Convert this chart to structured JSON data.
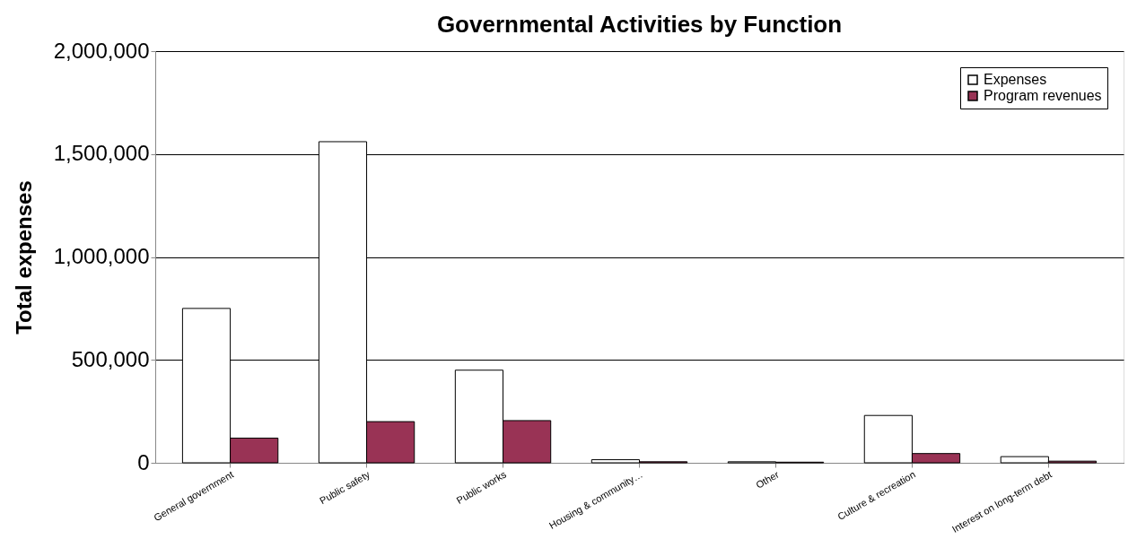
{
  "chart_data": {
    "type": "bar",
    "title": "Governmental Activities by Function",
    "ylabel": "Total expenses",
    "categories": [
      "General government",
      "Public safety",
      "Public works",
      "Housing & community…",
      "Other",
      "Culture & recreation",
      "Interest on long-term debt"
    ],
    "series": [
      {
        "name": "Expenses",
        "color": "#ffffff",
        "values": [
          750000,
          1560000,
          450000,
          15000,
          5000,
          230000,
          30000
        ]
      },
      {
        "name": "Program revenues",
        "color": "#993355",
        "values": [
          120000,
          200000,
          205000,
          5000,
          3000,
          45000,
          8000
        ]
      }
    ],
    "ylim": [
      0,
      2000000
    ],
    "yticks": [
      0,
      {
        "value": 500000,
        "label": "500,000"
      },
      {
        "value": 1000000,
        "label": "1,000,000"
      },
      {
        "value": 1500000,
        "label": "1,500,000"
      },
      {
        "value": 2000000,
        "label": "2,000,000"
      }
    ],
    "grid": "y",
    "legend": "top right"
  }
}
